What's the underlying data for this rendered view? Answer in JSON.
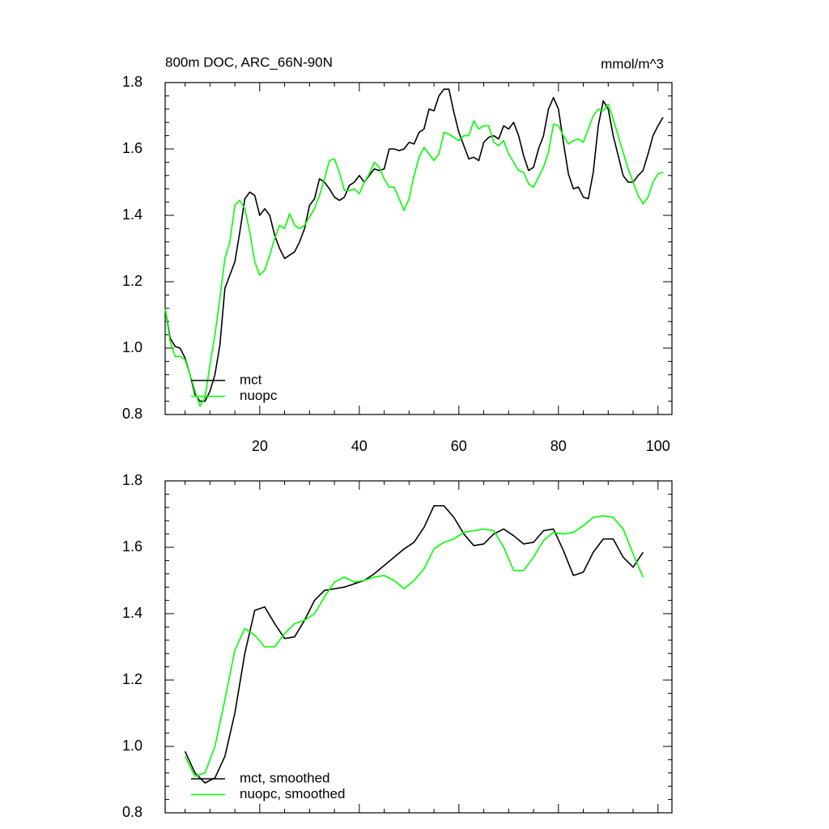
{
  "chart_data": [
    {
      "type": "line",
      "title": "800m DOC, ARC_66N-90N",
      "units": "mmol/m^3",
      "x": [
        1,
        2,
        3,
        4,
        5,
        6,
        7,
        8,
        9,
        10,
        11,
        12,
        13,
        14,
        15,
        16,
        17,
        18,
        19,
        20,
        21,
        22,
        23,
        24,
        25,
        26,
        27,
        28,
        29,
        30,
        31,
        32,
        33,
        34,
        35,
        36,
        37,
        38,
        39,
        40,
        41,
        42,
        43,
        44,
        45,
        46,
        47,
        48,
        49,
        50,
        51,
        52,
        53,
        54,
        55,
        56,
        57,
        58,
        59,
        60,
        61,
        62,
        63,
        64,
        65,
        66,
        67,
        68,
        69,
        70,
        71,
        72,
        73,
        74,
        75,
        76,
        77,
        78,
        79,
        80,
        81,
        82,
        83,
        84,
        85,
        86,
        87,
        88,
        89,
        90,
        91,
        92,
        93,
        94,
        95,
        96,
        97,
        98,
        99,
        100,
        101
      ],
      "series": [
        {
          "name": "mct",
          "color": "#000000",
          "values": [
            1.12,
            1.03,
            1.005,
            1.0,
            0.97,
            0.92,
            0.86,
            0.84,
            0.84,
            0.87,
            0.92,
            1.01,
            1.18,
            1.22,
            1.26,
            1.35,
            1.45,
            1.47,
            1.46,
            1.4,
            1.42,
            1.4,
            1.34,
            1.3,
            1.27,
            1.28,
            1.29,
            1.32,
            1.36,
            1.43,
            1.45,
            1.51,
            1.5,
            1.48,
            1.455,
            1.445,
            1.455,
            1.49,
            1.5,
            1.52,
            1.5,
            1.52,
            1.54,
            1.535,
            1.54,
            1.6,
            1.6,
            1.595,
            1.6,
            1.62,
            1.615,
            1.65,
            1.66,
            1.72,
            1.715,
            1.76,
            1.78,
            1.78,
            1.71,
            1.65,
            1.61,
            1.57,
            1.575,
            1.565,
            1.62,
            1.635,
            1.64,
            1.63,
            1.67,
            1.66,
            1.68,
            1.64,
            1.58,
            1.535,
            1.545,
            1.6,
            1.64,
            1.72,
            1.755,
            1.72,
            1.62,
            1.525,
            1.48,
            1.485,
            1.455,
            1.45,
            1.53,
            1.67,
            1.745,
            1.72,
            1.64,
            1.58,
            1.52,
            1.5,
            1.5,
            1.52,
            1.535,
            1.585,
            1.64,
            1.67,
            1.695
          ]
        },
        {
          "name": "nuopc",
          "color": "#00ff00",
          "values": [
            1.12,
            1.02,
            0.975,
            0.975,
            0.965,
            0.92,
            0.87,
            0.825,
            0.85,
            0.95,
            1.04,
            1.15,
            1.27,
            1.32,
            1.43,
            1.445,
            1.42,
            1.35,
            1.26,
            1.22,
            1.235,
            1.28,
            1.33,
            1.37,
            1.36,
            1.405,
            1.37,
            1.36,
            1.37,
            1.395,
            1.42,
            1.46,
            1.51,
            1.565,
            1.57,
            1.53,
            1.475,
            1.475,
            1.48,
            1.465,
            1.5,
            1.525,
            1.56,
            1.545,
            1.51,
            1.485,
            1.485,
            1.45,
            1.415,
            1.45,
            1.52,
            1.575,
            1.605,
            1.585,
            1.565,
            1.585,
            1.65,
            1.645,
            1.635,
            1.625,
            1.64,
            1.64,
            1.685,
            1.66,
            1.67,
            1.67,
            1.62,
            1.61,
            1.625,
            1.585,
            1.56,
            1.535,
            1.53,
            1.495,
            1.485,
            1.515,
            1.545,
            1.59,
            1.675,
            1.67,
            1.64,
            1.615,
            1.625,
            1.63,
            1.62,
            1.66,
            1.7,
            1.72,
            1.715,
            1.735,
            1.69,
            1.64,
            1.59,
            1.54,
            1.5,
            1.46,
            1.435,
            1.455,
            1.5,
            1.525,
            1.53
          ]
        }
      ],
      "xlim": [
        1,
        102.8
      ],
      "ylim": [
        0.8,
        1.8
      ],
      "xticks": [
        20,
        40,
        60,
        80,
        100
      ],
      "yticks": [
        0.8,
        {
          "value": 1,
          "label": "1.0"
        },
        1.2,
        1.4,
        1.6,
        1.8
      ],
      "legend": "lower left"
    },
    {
      "type": "line",
      "x": [
        5,
        7,
        9,
        11,
        13,
        15,
        17,
        19,
        21,
        23,
        25,
        27,
        29,
        31,
        33,
        35,
        37,
        39,
        41,
        43,
        45,
        47,
        49,
        51,
        53,
        55,
        57,
        59,
        61,
        63,
        65,
        67,
        69,
        71,
        73,
        75,
        77,
        79,
        81,
        83,
        85,
        87,
        89,
        91,
        93,
        95,
        97
      ],
      "series": [
        {
          "name": "mct, smoothed",
          "color": "#000000",
          "values": [
            0.985,
            0.92,
            0.89,
            0.905,
            0.97,
            1.1,
            1.28,
            1.41,
            1.42,
            1.37,
            1.325,
            1.33,
            1.38,
            1.44,
            1.47,
            1.475,
            1.48,
            1.49,
            1.5,
            1.52,
            1.545,
            1.57,
            1.595,
            1.615,
            1.66,
            1.725,
            1.725,
            1.69,
            1.64,
            1.605,
            1.61,
            1.64,
            1.655,
            1.635,
            1.61,
            1.615,
            1.65,
            1.655,
            1.59,
            1.515,
            1.525,
            1.585,
            1.625,
            1.625,
            1.57,
            1.54,
            1.585
          ]
        },
        {
          "name": "nuopc, smoothed",
          "color": "#00ff00",
          "values": [
            0.97,
            0.91,
            0.92,
            1.0,
            1.14,
            1.29,
            1.355,
            1.335,
            1.3,
            1.3,
            1.34,
            1.37,
            1.38,
            1.4,
            1.45,
            1.495,
            1.51,
            1.495,
            1.5,
            1.51,
            1.515,
            1.5,
            1.475,
            1.5,
            1.535,
            1.595,
            1.615,
            1.625,
            1.645,
            1.65,
            1.655,
            1.65,
            1.6,
            1.53,
            1.53,
            1.57,
            1.62,
            1.645,
            1.64,
            1.645,
            1.665,
            1.69,
            1.695,
            1.69,
            1.655,
            1.58,
            1.51
          ]
        }
      ],
      "xlim": [
        1,
        102.8
      ],
      "ylim": [
        0.8,
        1.8
      ],
      "xticks": [
        20,
        40,
        60,
        80,
        100
      ],
      "xtick_labels": false,
      "yticks": [
        0.8,
        {
          "value": 1,
          "label": "1.0"
        },
        1.2,
        1.4,
        1.6,
        1.8
      ],
      "legend": "lower left"
    }
  ]
}
